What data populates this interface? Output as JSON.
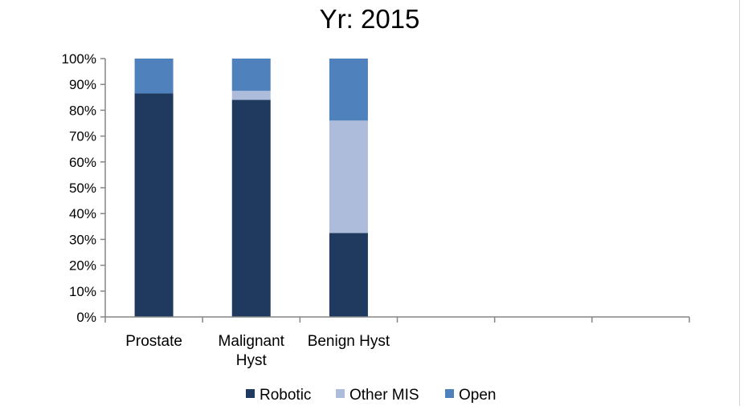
{
  "chart_data": {
    "type": "bar",
    "stacked": true,
    "title": "Yr: 2015",
    "xlabel": "",
    "ylabel": "",
    "ylim": [
      0,
      100
    ],
    "yticks": [
      "0%",
      "10%",
      "20%",
      "30%",
      "40%",
      "50%",
      "60%",
      "70%",
      "80%",
      "90%",
      "100%"
    ],
    "category_slots": 6,
    "categories": [
      [
        "Prostate"
      ],
      [
        "Malignant",
        "Hyst"
      ],
      [
        "Benign Hyst"
      ]
    ],
    "series": [
      {
        "name": "Robotic",
        "color": "#1f3a5e",
        "values": [
          86.5,
          84,
          32.5
        ]
      },
      {
        "name": "Other MIS",
        "color": "#adbcda",
        "values": [
          0,
          3.5,
          43.5
        ]
      },
      {
        "name": "Open",
        "color": "#4f81bd",
        "values": [
          13.5,
          12.5,
          24
        ]
      }
    ],
    "legend_position": "bottom",
    "grid": false
  }
}
